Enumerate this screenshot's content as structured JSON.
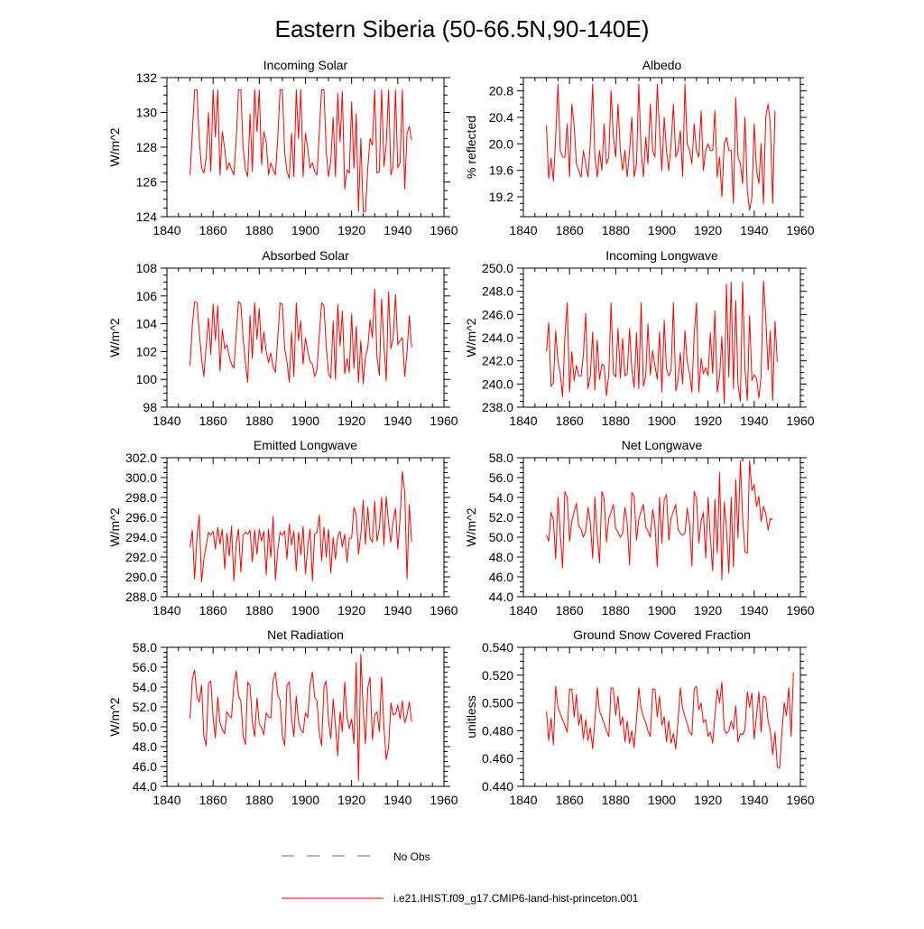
{
  "title": "Eastern Siberia (50-66.5N,90-140E)",
  "colors": {
    "series": "#ff0000",
    "obs": "#5b5bc8",
    "frame": "#000000"
  },
  "legend": {
    "obs_label": "No Obs",
    "model_label": "i.e21.IHIST.f09_g17.CMIP6-land-hist-princeton.001"
  },
  "chart_data": [
    {
      "type": "line",
      "title": "Incoming Solar",
      "ylabel": "W/m^2",
      "xlim": [
        1840,
        1960
      ],
      "ylim": [
        124,
        132
      ],
      "xticks": [
        1840,
        1860,
        1880,
        1900,
        1920,
        1940,
        1960
      ],
      "yticks": [
        124,
        126,
        128,
        130,
        132
      ],
      "yfmt": 0,
      "series": [
        {
          "x0": 1850,
          "values": [
            126.4,
            128.8,
            131.3,
            131.3,
            128.4,
            126.8,
            126.5,
            127.4,
            130.0,
            126.6,
            131.3,
            128.6,
            131.3,
            126.4,
            128.9,
            127.9,
            126.7,
            127.1,
            126.7,
            126.4,
            128.4,
            131.3,
            131.3,
            128.0,
            126.7,
            126.3,
            129.9,
            126.6,
            131.3,
            128.9,
            131.3,
            127.0,
            128.9,
            128.3,
            126.4,
            127.1,
            126.7,
            126.4,
            128.5,
            131.3,
            131.3,
            127.7,
            126.6,
            126.2,
            128.8,
            126.3,
            131.3,
            128.5,
            131.3,
            126.3,
            128.8,
            127.9,
            126.8,
            127.1,
            126.6,
            126.4,
            128.9,
            131.3,
            131.3,
            127.8,
            126.3,
            127.2,
            129.7,
            126.3,
            131.1,
            128.3,
            131.2,
            125.6,
            126.7,
            126.5,
            130.6,
            126.8,
            129.9,
            124.3,
            128.5,
            124.3,
            124.3,
            126.8,
            128.5,
            128.1,
            131.3,
            126.5,
            126.6,
            131.3,
            126.9,
            128.1,
            131.3,
            126.4,
            126.9,
            131.3,
            126.8,
            127.1,
            131.3,
            125.6,
            128.8,
            129.2,
            128.4
          ]
        }
      ]
    },
    {
      "type": "line",
      "title": "Albedo",
      "ylabel": "% reflected",
      "xlim": [
        1840,
        1960
      ],
      "ylim": [
        18.9,
        21.0
      ],
      "xticks": [
        1840,
        1860,
        1880,
        1900,
        1920,
        1940,
        1960
      ],
      "yticks": [
        19.2,
        19.6,
        20.0,
        20.4,
        20.8
      ],
      "yfmt": 1,
      "series": [
        {
          "x0": 1850,
          "values": [
            20.28,
            19.48,
            19.78,
            19.44,
            20.1,
            20.9,
            19.9,
            19.8,
            19.8,
            20.3,
            19.5,
            20.6,
            20.28,
            19.7,
            19.6,
            19.5,
            19.9,
            19.7,
            19.5,
            20.0,
            20.9,
            19.8,
            19.5,
            19.9,
            19.6,
            20.3,
            19.7,
            19.8,
            20.8,
            20.1,
            19.8,
            20.6,
            19.9,
            19.6,
            19.9,
            19.5,
            19.9,
            20.4,
            19.5,
            19.7,
            20.9,
            19.9,
            19.5,
            20.1,
            19.7,
            20.6,
            19.9,
            19.8,
            20.9,
            20.2,
            19.6,
            20.4,
            19.9,
            19.6,
            20.0,
            20.6,
            19.8,
            19.9,
            20.2,
            19.5,
            20.9,
            20.0,
            19.9,
            19.7,
            20.3,
            19.9,
            19.8,
            20.5,
            19.6,
            19.9,
            20.0,
            19.9,
            19.9,
            20.5,
            19.5,
            19.8,
            19.2,
            20.0,
            20.1,
            19.9,
            19.9,
            19.1,
            20.7,
            19.8,
            19.7,
            19.4,
            20.4,
            19.3,
            19.0,
            19.2,
            20.3,
            19.6,
            19.4,
            20.0,
            19.1,
            20.4,
            20.6,
            20.3,
            19.1,
            20.5
          ]
        }
      ]
    },
    {
      "type": "line",
      "title": "Absorbed Solar",
      "ylabel": "W/m^2",
      "xlim": [
        1840,
        1960
      ],
      "ylim": [
        98,
        108
      ],
      "xticks": [
        1840,
        1860,
        1880,
        1900,
        1920,
        1940,
        1960
      ],
      "yticks": [
        98,
        100,
        102,
        104,
        106,
        108
      ],
      "yfmt": 0,
      "series": [
        {
          "x0": 1850,
          "values": [
            101.0,
            103.9,
            105.6,
            105.5,
            103.4,
            101.5,
            100.2,
            102.4,
            104.4,
            101.8,
            105.4,
            102.8,
            105.3,
            100.6,
            103.6,
            102.2,
            102.5,
            101.6,
            101.1,
            100.8,
            103.3,
            105.6,
            105.4,
            103.0,
            101.2,
            99.8,
            104.6,
            101.5,
            105.5,
            102.9,
            105.1,
            101.9,
            103.4,
            102.0,
            101.2,
            101.9,
            100.9,
            100.5,
            103.0,
            105.5,
            105.4,
            102.2,
            101.3,
            99.8,
            103.4,
            100.2,
            105.5,
            102.8,
            104.2,
            101.1,
            103.0,
            102.0,
            101.3,
            101.1,
            100.2,
            100.7,
            103.2,
            105.5,
            105.3,
            102.4,
            100.4,
            100.1,
            104.2,
            100.0,
            105.4,
            102.4,
            104.9,
            100.4,
            101.5,
            100.5,
            104.7,
            100.8,
            103.8,
            99.8,
            102.8,
            99.7,
            101.6,
            102.3,
            104.3,
            103.0,
            106.5,
            101.6,
            100.3,
            105.8,
            102.5,
            99.9,
            106.3,
            102.2,
            102.9,
            106.1,
            102.5,
            102.8,
            103.0,
            100.2,
            102.0,
            104.6,
            102.3
          ]
        }
      ]
    },
    {
      "type": "line",
      "title": "Incoming Longwave",
      "ylabel": "W/m^2",
      "xlim": [
        1840,
        1960
      ],
      "ylim": [
        238,
        250
      ],
      "xticks": [
        1840,
        1860,
        1880,
        1900,
        1920,
        1940,
        1960
      ],
      "yticks": [
        238,
        240,
        242,
        244,
        246,
        248,
        250
      ],
      "yfmt": 1,
      "series": [
        {
          "x0": 1850,
          "values": [
            242.8,
            245.3,
            239.8,
            240.1,
            244.6,
            241.9,
            240.9,
            238.9,
            244.0,
            247.0,
            239.3,
            242.8,
            240.3,
            241.6,
            240.7,
            240.7,
            242.5,
            246.1,
            239.6,
            240.7,
            244.5,
            239.5,
            243.8,
            240.4,
            241.7,
            241.6,
            239.0,
            240.9,
            247.0,
            240.9,
            240.6,
            244.8,
            240.5,
            243.9,
            240.7,
            240.9,
            244.8,
            241.2,
            239.7,
            244.4,
            239.6,
            247.0,
            239.8,
            240.7,
            245.2,
            240.8,
            242.9,
            241.6,
            240.4,
            244.5,
            239.3,
            245.5,
            241.3,
            240.7,
            241.2,
            247.0,
            239.4,
            240.3,
            242.7,
            240.0,
            244.6,
            241.9,
            240.9,
            239.3,
            244.3,
            247.0,
            239.3,
            242.2,
            240.9,
            241.4,
            240.7,
            244.4,
            240.9,
            246.3,
            239.3,
            240.7,
            244.1,
            238.3,
            248.6,
            240.6,
            248.8,
            239.6,
            247.2,
            239.9,
            238.5,
            248.8,
            241.3,
            238.6,
            245.9,
            240.3,
            240.8,
            240.5,
            238.8,
            240.7,
            248.9,
            245.8,
            241.2,
            244.6,
            238.6,
            245.4,
            241.9
          ]
        }
      ]
    },
    {
      "type": "line",
      "title": "Emitted Longwave",
      "ylabel": "W/m^2",
      "xlim": [
        1840,
        1960
      ],
      "ylim": [
        288,
        302
      ],
      "xticks": [
        1840,
        1860,
        1880,
        1900,
        1920,
        1940,
        1960
      ],
      "yticks": [
        288,
        290,
        292,
        294,
        296,
        298,
        300,
        302
      ],
      "yfmt": 1,
      "series": [
        {
          "x0": 1850,
          "values": [
            293.0,
            294.7,
            289.8,
            294.0,
            296.2,
            289.5,
            291.8,
            293.2,
            294.5,
            294.2,
            294.6,
            292.8,
            295.0,
            293.3,
            294.8,
            290.8,
            294.4,
            292.1,
            295.1,
            289.6,
            293.4,
            294.8,
            290.5,
            294.2,
            294.5,
            294.3,
            294.7,
            291.5,
            294.7,
            292.3,
            294.8,
            293.6,
            294.6,
            290.2,
            294.8,
            292.0,
            296.1,
            289.7,
            292.7,
            294.5,
            294.2,
            294.6,
            291.8,
            295.3,
            293.2,
            294.6,
            290.6,
            294.5,
            292.2,
            295.1,
            290.3,
            293.1,
            294.8,
            289.6,
            294.3,
            294.5,
            296.2,
            291.6,
            295.0,
            292.0,
            294.8,
            290.4,
            294.0,
            291.8,
            294.1,
            294.6,
            293.0,
            294.3,
            291.5,
            293.9,
            293.9,
            297.0,
            296.2,
            292.3,
            294.3,
            297.7,
            293.3,
            297.0,
            293.9,
            293.5,
            297.6,
            293.6,
            294.9,
            298.0,
            293.2,
            298.1,
            295.4,
            293.5,
            295.6,
            296.9,
            292.8,
            295.9,
            300.6,
            298.6,
            289.8,
            297.3,
            293.5
          ]
        }
      ]
    },
    {
      "type": "line",
      "title": "Net Longwave",
      "ylabel": "W/m^2",
      "xlim": [
        1840,
        1960
      ],
      "ylim": [
        44,
        58
      ],
      "xticks": [
        1840,
        1860,
        1880,
        1900,
        1920,
        1940,
        1960
      ],
      "yticks": [
        44,
        46,
        48,
        50,
        52,
        54,
        56,
        58
      ],
      "yfmt": 1,
      "series": [
        {
          "x0": 1850,
          "values": [
            50.2,
            49.6,
            52.5,
            51.7,
            47.8,
            54.0,
            50.3,
            46.9,
            54.6,
            54.0,
            49.6,
            51.6,
            52.6,
            53.4,
            51.1,
            50.8,
            50.0,
            50.6,
            53.0,
            51.5,
            47.9,
            54.0,
            50.1,
            47.4,
            54.6,
            53.9,
            49.5,
            51.9,
            52.5,
            53.3,
            50.9,
            50.5,
            50.0,
            50.4,
            53.0,
            51.4,
            47.2,
            54.5,
            54.1,
            49.7,
            51.8,
            52.6,
            53.3,
            51.1,
            50.6,
            50.0,
            52.8,
            51.3,
            47.0,
            54.0,
            49.4,
            53.8,
            54.3,
            49.7,
            51.9,
            52.6,
            53.3,
            50.8,
            50.4,
            50.2,
            50.4,
            52.9,
            51.3,
            47.1,
            54.6,
            53.9,
            49.4,
            51.6,
            52.5,
            47.9,
            54.0,
            50.0,
            46.6,
            53.8,
            48.4,
            56.5,
            45.7,
            53.5,
            50.9,
            46.4,
            54.0,
            47.0,
            55.8,
            49.9,
            57.7,
            52.0,
            48.5,
            48.4,
            57.7,
            54.7,
            55.3,
            53.1,
            54.1,
            51.6,
            53.1,
            52.4,
            50.7,
            51.9,
            51.7
          ]
        }
      ]
    },
    {
      "type": "line",
      "title": "Net Radiation",
      "ylabel": "W/m^2",
      "xlim": [
        1840,
        1960
      ],
      "ylim": [
        44,
        58
      ],
      "xticks": [
        1840,
        1860,
        1880,
        1900,
        1920,
        1940,
        1960
      ],
      "yticks": [
        44,
        46,
        48,
        50,
        52,
        54,
        56,
        58
      ],
      "yfmt": 1,
      "series": [
        {
          "x0": 1850,
          "values": [
            50.8,
            54.8,
            55.7,
            53.0,
            52.5,
            54.2,
            49.1,
            48.1,
            54.4,
            54.6,
            50.9,
            48.9,
            53.0,
            50.4,
            49.7,
            49.3,
            51.5,
            51.1,
            50.9,
            54.3,
            55.6,
            53.1,
            52.6,
            49.1,
            48.2,
            54.5,
            54.1,
            50.5,
            49.0,
            52.9,
            50.3,
            49.9,
            49.2,
            51.4,
            51.0,
            50.9,
            54.7,
            55.5,
            53.2,
            52.7,
            49.1,
            48.1,
            54.2,
            54.5,
            50.9,
            49.0,
            53.1,
            50.6,
            49.7,
            49.4,
            51.4,
            50.9,
            54.2,
            55.5,
            53.0,
            52.6,
            49.3,
            48.1,
            54.0,
            54.6,
            50.6,
            48.8,
            52.8,
            50.1,
            47.1,
            51.5,
            49.5,
            54.5,
            51.0,
            49.8,
            50.8,
            48.3,
            56.5,
            44.6,
            57.3,
            51.7,
            48.3,
            53.9,
            55.0,
            48.7,
            51.2,
            51.5,
            49.5,
            55.0,
            50.0,
            46.7,
            47.9,
            52.4,
            51.2,
            51.3,
            52.2,
            50.8,
            52.6,
            50.4,
            51.2,
            52.5,
            50.5
          ]
        }
      ]
    },
    {
      "type": "line",
      "title": "Ground Snow Covered Fraction",
      "ylabel": "unitless",
      "xlim": [
        1840,
        1960
      ],
      "ylim": [
        0.44,
        0.54
      ],
      "xticks": [
        1840,
        1860,
        1880,
        1900,
        1920,
        1940,
        1960
      ],
      "yticks": [
        0.44,
        0.46,
        0.48,
        0.5,
        0.52,
        0.54
      ],
      "yfmt": 3,
      "series": [
        {
          "x0": 1850,
          "values": [
            0.494,
            0.473,
            0.489,
            0.47,
            0.512,
            0.497,
            0.492,
            0.488,
            0.484,
            0.479,
            0.51,
            0.51,
            0.49,
            0.506,
            0.484,
            0.492,
            0.474,
            0.488,
            0.473,
            0.482,
            0.467,
            0.488,
            0.511,
            0.494,
            0.49,
            0.485,
            0.48,
            0.476,
            0.511,
            0.51,
            0.491,
            0.505,
            0.484,
            0.49,
            0.472,
            0.487,
            0.471,
            0.48,
            0.468,
            0.488,
            0.511,
            0.496,
            0.49,
            0.486,
            0.48,
            0.476,
            0.51,
            0.51,
            0.49,
            0.505,
            0.484,
            0.49,
            0.472,
            0.487,
            0.471,
            0.478,
            0.467,
            0.487,
            0.511,
            0.496,
            0.49,
            0.485,
            0.479,
            0.477,
            0.51,
            0.512,
            0.495,
            0.5,
            0.486,
            0.488,
            0.476,
            0.479,
            0.471,
            0.491,
            0.51,
            0.5,
            0.515,
            0.481,
            0.478,
            0.48,
            0.487,
            0.481,
            0.498,
            0.472,
            0.478,
            0.477,
            0.481,
            0.508,
            0.497,
            0.507,
            0.474,
            0.491,
            0.508,
            0.479,
            0.505,
            0.504,
            0.487,
            0.48,
            0.463,
            0.479,
            0.454,
            0.453,
            0.479,
            0.5,
            0.491,
            0.511,
            0.476,
            0.522
          ]
        }
      ]
    }
  ]
}
